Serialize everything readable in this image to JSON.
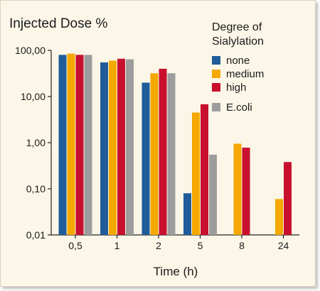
{
  "chart_data": {
    "type": "bar",
    "title": "Injected Dose %",
    "xlabel": "Time (h)",
    "ylabel": "Injected Dose %",
    "yscale": "log",
    "ylim": [
      0.01,
      100
    ],
    "yticks": [
      0.01,
      0.1,
      1,
      10,
      100
    ],
    "ytick_labels": [
      "0,01",
      "0,10",
      "1,00",
      "10,00",
      "100,00"
    ],
    "categories": [
      "0,5",
      "1",
      "2",
      "5",
      "8",
      "24"
    ],
    "legend_title": "Degree of Sialylation",
    "legend_position": "top-right",
    "grid": false,
    "series": [
      {
        "name": "none",
        "color": "#1f5c99",
        "values": [
          80,
          55,
          20,
          0.08,
          null,
          null
        ]
      },
      {
        "name": "medium",
        "color": "#f5a800",
        "values": [
          85,
          60,
          32,
          4.5,
          0.95,
          0.06
        ]
      },
      {
        "name": "high",
        "color": "#c8102e",
        "values": [
          80,
          66,
          40,
          6.8,
          0.78,
          0.38
        ]
      },
      {
        "name": "E.coli",
        "color": "#9d9d9d",
        "values": [
          80,
          64,
          32,
          0.55,
          null,
          null
        ]
      }
    ]
  }
}
